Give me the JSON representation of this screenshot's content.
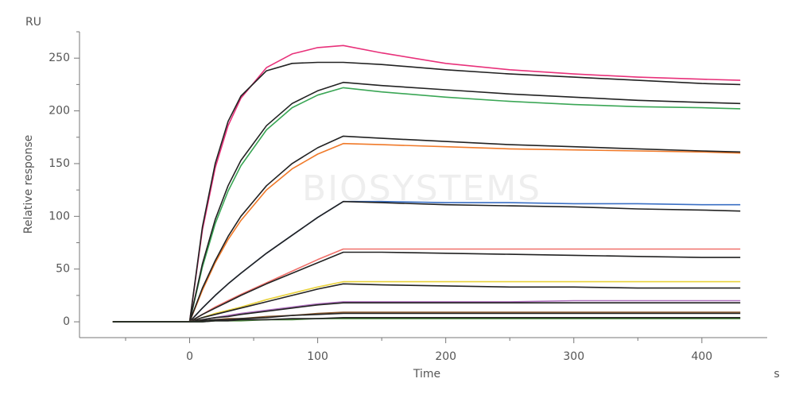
{
  "chart_data": {
    "type": "line",
    "y_unit": "RU",
    "ylabel": "Relative response",
    "xlabel": "Time",
    "x_unit": "s",
    "watermark": "BIOSYSTEMS",
    "xlim": [
      -86,
      451
    ],
    "ylim": [
      -15,
      275
    ],
    "xticks": [
      0,
      100,
      200,
      300,
      400
    ],
    "yticks": [
      0,
      50,
      100,
      150,
      200,
      250
    ],
    "xminorticks": [
      -50,
      50,
      150,
      250,
      350
    ],
    "yminorticks": [
      25,
      75,
      125,
      175,
      225,
      275
    ],
    "x": [
      -60,
      0,
      10,
      20,
      30,
      40,
      60,
      80,
      100,
      120,
      150,
      200,
      250,
      300,
      350,
      400,
      430
    ],
    "series": [
      {
        "color": "#e8317a",
        "values": [
          0,
          0,
          87,
          146,
          186,
          212,
          241,
          254,
          260,
          262,
          255,
          245,
          239,
          235,
          232,
          230,
          229
        ]
      },
      {
        "color": "#222222",
        "values": [
          0,
          0,
          90,
          150,
          190,
          214,
          238,
          245,
          246,
          246,
          244,
          239,
          235,
          232,
          229,
          226,
          225
        ]
      },
      {
        "color": "#3aa655",
        "values": [
          0,
          0,
          52,
          93,
          124,
          148,
          182,
          203,
          215,
          222,
          218,
          213,
          209,
          206,
          204,
          203,
          202
        ]
      },
      {
        "color": "#222222",
        "values": [
          0,
          0,
          55,
          97,
          129,
          153,
          186,
          207,
          219,
          227,
          224,
          220,
          216,
          213,
          210,
          208,
          207
        ]
      },
      {
        "color": "#f07a2a",
        "values": [
          0,
          0,
          30,
          56,
          78,
          96,
          125,
          145,
          159,
          169,
          168,
          166,
          164,
          163,
          162,
          161,
          160
        ]
      },
      {
        "color": "#222222",
        "values": [
          0,
          0,
          32,
          58,
          81,
          100,
          129,
          150,
          165,
          176,
          174,
          171,
          168,
          166,
          164,
          162,
          161
        ]
      },
      {
        "color": "#3a6fc4",
        "values": [
          0,
          0,
          13,
          25,
          36,
          46,
          65,
          82,
          99,
          114,
          114,
          113,
          113,
          112,
          112,
          111,
          111
        ]
      },
      {
        "color": "#222222",
        "values": [
          0,
          0,
          13,
          25,
          36,
          46,
          65,
          82,
          99,
          114,
          113,
          111,
          110,
          109,
          107,
          106,
          105
        ]
      },
      {
        "color": "#f0706a",
        "values": [
          0,
          0,
          7,
          14,
          20,
          26,
          37,
          48,
          59,
          69,
          69,
          69,
          69,
          69,
          69,
          69,
          69
        ]
      },
      {
        "color": "#222222",
        "values": [
          0,
          0,
          7,
          13,
          19,
          25,
          36,
          46,
          56,
          66,
          66,
          65,
          64,
          63,
          62,
          61,
          61
        ]
      },
      {
        "color": "#e8d13a",
        "values": [
          0,
          0,
          4,
          8,
          11,
          14,
          21,
          27,
          33,
          38,
          38,
          38,
          38,
          38,
          38,
          38,
          38
        ]
      },
      {
        "color": "#222222",
        "values": [
          0,
          0,
          4,
          7,
          10,
          13,
          19,
          25,
          31,
          36,
          35,
          34,
          33,
          33,
          32,
          32,
          32
        ]
      },
      {
        "color": "#b070c0",
        "values": [
          0,
          0,
          2,
          4,
          6,
          8,
          11,
          14,
          17,
          19,
          19,
          19,
          19,
          20,
          20,
          20,
          20
        ]
      },
      {
        "color": "#222222",
        "values": [
          0,
          0,
          2,
          4,
          5,
          7,
          10,
          13,
          16,
          18,
          18,
          18,
          18,
          18,
          18,
          18,
          18
        ]
      },
      {
        "color": "#8a5a30",
        "values": [
          0,
          0,
          1,
          2,
          3,
          3,
          5,
          6,
          8,
          9,
          9,
          9,
          9,
          9,
          9,
          9,
          9
        ]
      },
      {
        "color": "#222222",
        "values": [
          0,
          0,
          1,
          2,
          2,
          3,
          4,
          6,
          7,
          8,
          8,
          8,
          8,
          8,
          8,
          8,
          8
        ]
      },
      {
        "color": "#4a8a3a",
        "values": [
          0,
          0,
          0,
          1,
          1,
          1,
          2,
          2,
          3,
          3,
          3,
          3,
          3,
          3,
          3,
          3,
          3
        ]
      },
      {
        "color": "#222222",
        "values": [
          0,
          0,
          0,
          1,
          1,
          2,
          2,
          3,
          3,
          4,
          4,
          4,
          4,
          4,
          4,
          4,
          4
        ]
      }
    ]
  }
}
